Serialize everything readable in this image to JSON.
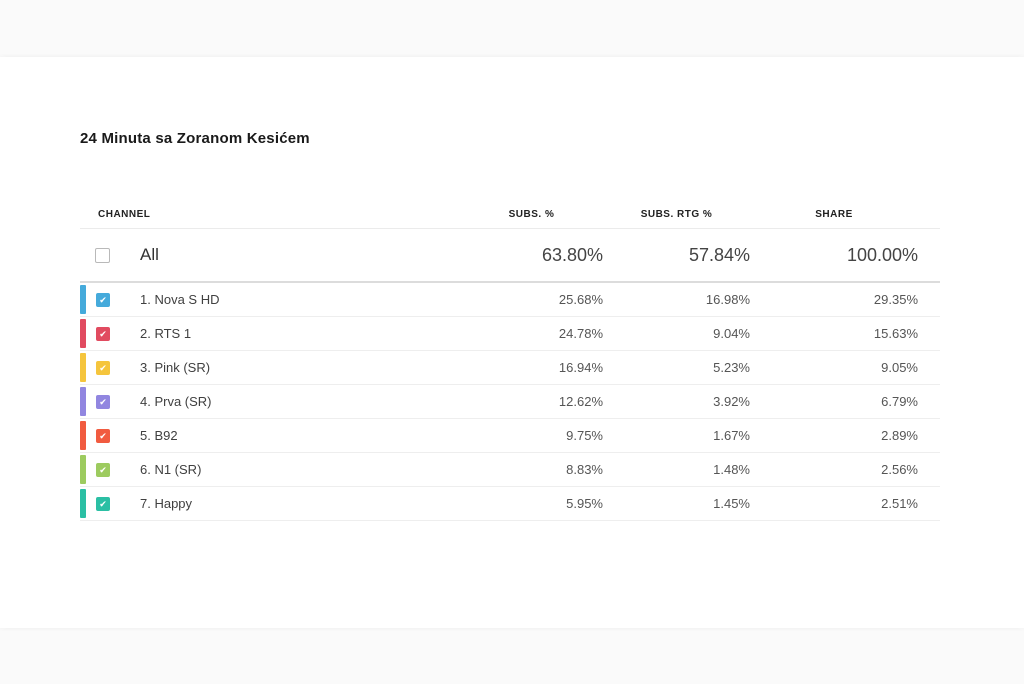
{
  "page": {
    "title": "24 Minuta sa Zoranom Kesićem"
  },
  "table": {
    "headers": {
      "channel": "CHANNEL",
      "subs": "SUBS. %",
      "subs_rtg": "SUBS. RTG %",
      "share": "SHARE"
    },
    "checkmark": "✔",
    "summary_row": {
      "label": "All",
      "subs": "63.80%",
      "subs_rtg": "57.84%",
      "share": "100.00%",
      "checked": false
    },
    "rows": [
      {
        "label": "1. Nova S HD",
        "color": "#45aadb",
        "subs": "25.68%",
        "subs_rtg": "16.98%",
        "share": "29.35%",
        "checked": true
      },
      {
        "label": "2. RTS 1",
        "color": "#e14b60",
        "subs": "24.78%",
        "subs_rtg": "9.04%",
        "share": "15.63%",
        "checked": true
      },
      {
        "label": "3. Pink (SR)",
        "color": "#f5c53d",
        "subs": "16.94%",
        "subs_rtg": "5.23%",
        "share": "9.05%",
        "checked": true
      },
      {
        "label": "4. Prva (SR)",
        "color": "#9186e0",
        "subs": "12.62%",
        "subs_rtg": "3.92%",
        "share": "6.79%",
        "checked": true
      },
      {
        "label": "5. B92",
        "color": "#f15b40",
        "subs": "9.75%",
        "subs_rtg": "1.67%",
        "share": "2.89%",
        "checked": true
      },
      {
        "label": "6. N1 (SR)",
        "color": "#9dcb5f",
        "subs": "8.83%",
        "subs_rtg": "1.48%",
        "share": "2.56%",
        "checked": true
      },
      {
        "label": "7. Happy",
        "color": "#2bbfa4",
        "subs": "5.95%",
        "subs_rtg": "1.45%",
        "share": "2.51%",
        "checked": true
      }
    ]
  }
}
